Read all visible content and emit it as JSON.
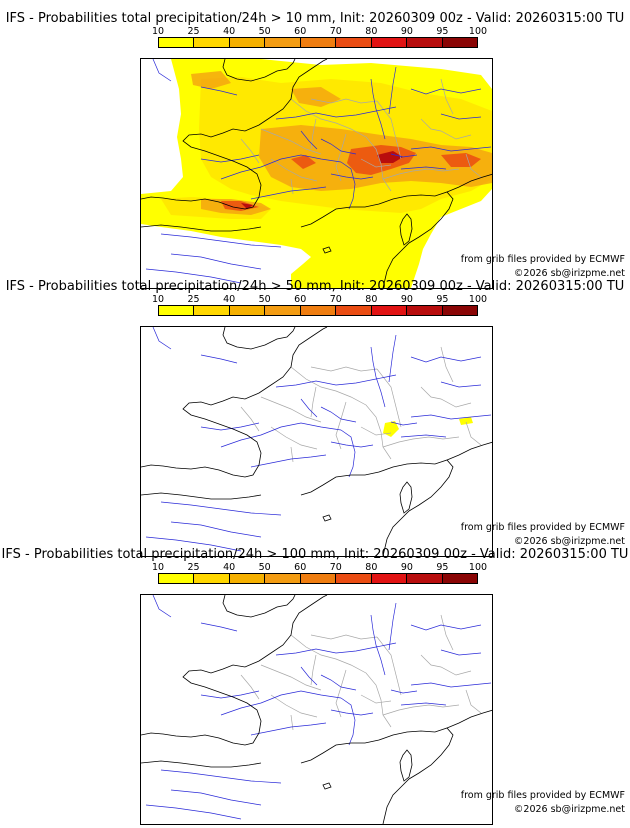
{
  "colorbar": {
    "ticks": [
      "10",
      "25",
      "40",
      "50",
      "60",
      "70",
      "80",
      "90",
      "95",
      "100"
    ],
    "colors": [
      "#ffff00",
      "#ffd700",
      "#f5b000",
      "#f39c12",
      "#ef7d10",
      "#ea4c12",
      "#e11313",
      "#b80d0d",
      "#8a0505",
      "#5a0000"
    ]
  },
  "panels": [
    {
      "title": "IFS - Probabilities total precipitation/24h > 10 mm, Init: 20260309 00z - Valid: 20260315:00 TU",
      "source_credit": "from grib files provided by ECMWF",
      "copyright": "©2026 sb@irizpme.net",
      "coverage": "high"
    },
    {
      "title": "IFS - Probabilities total precipitation/24h > 50 mm, Init: 20260309 00z - Valid: 20260315:00 TU",
      "source_credit": "from grib files provided by ECMWF",
      "copyright": "©2026 sb@irizpme.net",
      "coverage": "low"
    },
    {
      "title": "IFS - Probabilities total precipitation/24h > 100 mm, Init: 20260309 00z - Valid: 20260315:00 TU",
      "source_credit": "from grib files provided by ECMWF",
      "copyright": "©2026 sb@irizpme.net",
      "coverage": "none"
    }
  ],
  "map_colors": {
    "coastline": "#000000",
    "rivers": "#2a2ad8",
    "admin_borders": "#a8a8a8"
  }
}
